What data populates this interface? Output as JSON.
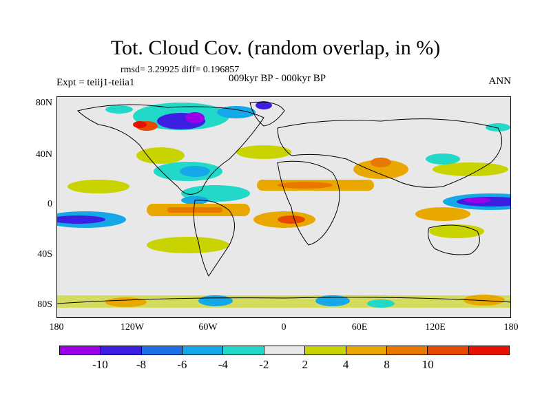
{
  "title": "Tot. Cloud Cov. (random overlap, in %)",
  "stats": "rmsd= 3.29925 diff= 0.196857",
  "experiment": "Expt = teiij1-teiia1",
  "period": "009kyr BP - 000kyr BP",
  "season": "ANN",
  "axes": {
    "y_ticks": [
      "80N",
      "40N",
      "0",
      "40S",
      "80S"
    ],
    "x_ticks": [
      "180",
      "120W",
      "60W",
      "0",
      "60E",
      "120E",
      "180"
    ]
  },
  "colorbar": {
    "colors": [
      "#9b00e8",
      "#3c1fe0",
      "#1f6fe6",
      "#15a8e8",
      "#22d8c8",
      "#e8e8e8",
      "#c8d300",
      "#e8a800",
      "#e87800",
      "#e84800",
      "#e81000"
    ],
    "labels": [
      "-10",
      "-8",
      "-6",
      "-4",
      "-2",
      "2",
      "4",
      "8",
      "10"
    ]
  }
}
